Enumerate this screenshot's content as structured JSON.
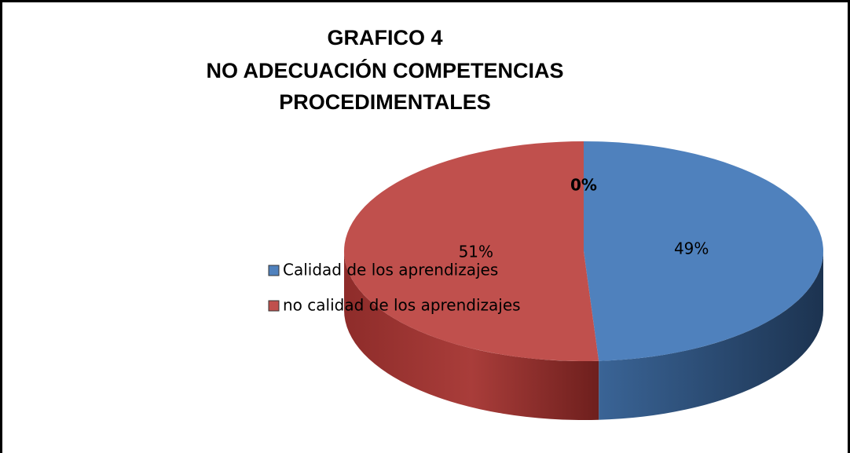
{
  "chart_data": {
    "type": "pie",
    "title": [
      "GRAFICO 4",
      "NO ADECUACIÓN COMPETENCIAS",
      "PROCEDIMENTALES"
    ],
    "categories": [
      "Calidad de los aprendizajes",
      "no calidad de los aprendizajes",
      null
    ],
    "values": [
      49,
      51,
      0
    ],
    "value_labels": [
      "49%",
      "51%",
      "0%"
    ],
    "colors": [
      "#4f81bd",
      "#c0504d",
      "#9bbb59"
    ],
    "legend": "left"
  }
}
